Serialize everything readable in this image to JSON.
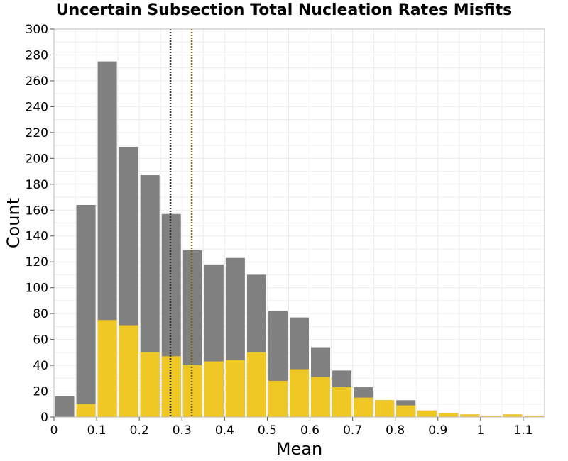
{
  "chart_data": {
    "type": "bar",
    "title": "Uncertain Subsection Total Nucleation Rates Misfits",
    "xlabel": "Mean",
    "ylabel": "Count",
    "xlim": [
      0,
      1.15
    ],
    "ylim": [
      0,
      300
    ],
    "bin_width": 0.05,
    "x_ticks": [
      "0",
      "0.1",
      "0.2",
      "0.3",
      "0.4",
      "0.5",
      "0.6",
      "0.7",
      "0.8",
      "0.9",
      "1",
      "1.1"
    ],
    "y_ticks": [
      "0",
      "20",
      "40",
      "60",
      "80",
      "100",
      "120",
      "140",
      "160",
      "180",
      "200",
      "220",
      "240",
      "260",
      "280",
      "300"
    ],
    "grid": true,
    "bin_starts": [
      0,
      0.05,
      0.1,
      0.15,
      0.2,
      0.25,
      0.3,
      0.35,
      0.4,
      0.45,
      0.5,
      0.55,
      0.6,
      0.65,
      0.7,
      0.75,
      0.8,
      0.85,
      0.9,
      0.95,
      1.0,
      1.05,
      1.1
    ],
    "series": [
      {
        "color": "#808080",
        "values": [
          16,
          164,
          275,
          209,
          187,
          157,
          129,
          118,
          123,
          110,
          82,
          77,
          54,
          36,
          23,
          13,
          13,
          5,
          3,
          2,
          1,
          2,
          1
        ]
      },
      {
        "color": "#f0c825",
        "values": [
          0,
          10,
          75,
          71,
          50,
          47,
          40,
          43,
          44,
          50,
          28,
          37,
          31,
          23,
          15,
          13,
          9,
          5,
          3,
          2,
          1,
          2,
          1
        ]
      }
    ],
    "reference_lines": [
      {
        "x": 0.273,
        "color": "#333333"
      },
      {
        "x": 0.323,
        "color": "#7a6010"
      }
    ]
  }
}
